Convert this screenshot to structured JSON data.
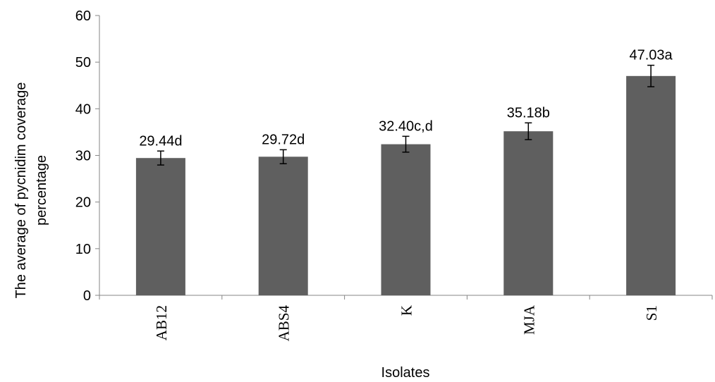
{
  "chart_data": {
    "type": "bar",
    "categories": [
      "AB12",
      "ABS4",
      "K",
      "MJA",
      "S1"
    ],
    "values": [
      29.44,
      29.72,
      32.4,
      35.18,
      47.03
    ],
    "error": [
      1.5,
      1.5,
      1.7,
      1.8,
      2.3
    ],
    "data_labels": [
      "29.44d",
      "29.72d",
      "32.40c,d",
      "35.18b",
      "47.03a"
    ],
    "title": "",
    "xlabel": "Isolates",
    "ylabel_lines": [
      "The average of pycnidim coverage",
      "percentage"
    ],
    "ylim": [
      0,
      60
    ],
    "yticks": [
      0,
      10,
      20,
      30,
      40,
      50,
      60
    ],
    "grid": false,
    "bar_color": "#5f5f5f",
    "axis_color": "#868686"
  }
}
